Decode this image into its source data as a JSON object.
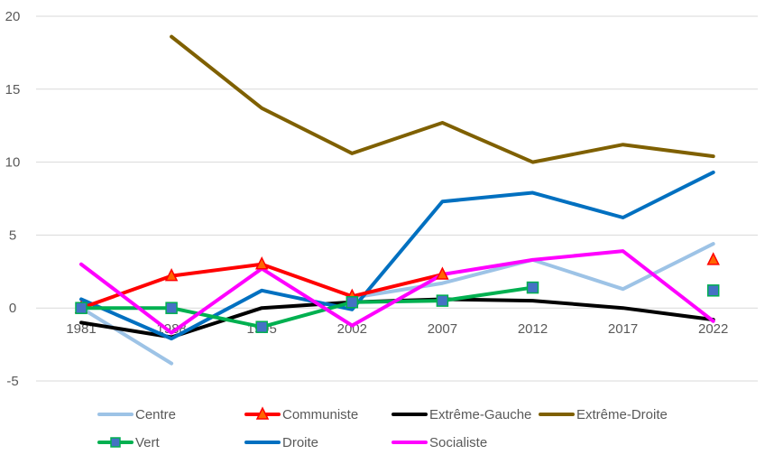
{
  "chart_data": {
    "type": "line",
    "title": "",
    "xlabel": "",
    "ylabel": "",
    "x": [
      "1981",
      "1988",
      "1995",
      "2002",
      "2007",
      "2012",
      "2017",
      "2022"
    ],
    "ylim": [
      -5,
      20
    ],
    "yticks": [
      -5,
      0,
      5,
      10,
      15,
      20
    ],
    "grid": true,
    "legend_position": "bottom",
    "series": [
      {
        "name": "Centre",
        "color": "#9DC3E6",
        "marker": "none",
        "values": [
          0.0,
          -3.8,
          null,
          0.7,
          1.7,
          3.3,
          1.3,
          4.4
        ]
      },
      {
        "name": "Communiste",
        "color": "#FF0000",
        "marker": "triangle",
        "marker_fill": "#FF6600",
        "values": [
          0.0,
          2.2,
          3.0,
          0.8,
          2.3,
          null,
          null,
          3.3
        ]
      },
      {
        "name": "Extrême-Gauche",
        "color": "#000000",
        "marker": "none",
        "values": [
          -1.0,
          -2.0,
          0.0,
          0.4,
          0.6,
          0.5,
          0.0,
          -0.8
        ]
      },
      {
        "name": "Extrême-Droite",
        "color": "#7F6000",
        "marker": "none",
        "values": [
          null,
          18.6,
          13.7,
          10.6,
          12.7,
          10.0,
          11.2,
          10.4
        ]
      },
      {
        "name": "Vert",
        "color": "#00B050",
        "marker": "square",
        "marker_fill": "#4472C4",
        "values": [
          0.0,
          0.0,
          -1.3,
          0.4,
          0.5,
          1.4,
          null,
          1.2
        ]
      },
      {
        "name": "Droite",
        "color": "#0070C0",
        "marker": "none",
        "values": [
          0.6,
          -2.1,
          1.2,
          -0.1,
          7.3,
          7.9,
          6.2,
          9.3
        ]
      },
      {
        "name": "Socialiste",
        "color": "#FF00FF",
        "marker": "none",
        "values": [
          3.0,
          -1.7,
          2.7,
          -1.2,
          2.3,
          3.3,
          3.9,
          -0.9
        ]
      }
    ]
  }
}
